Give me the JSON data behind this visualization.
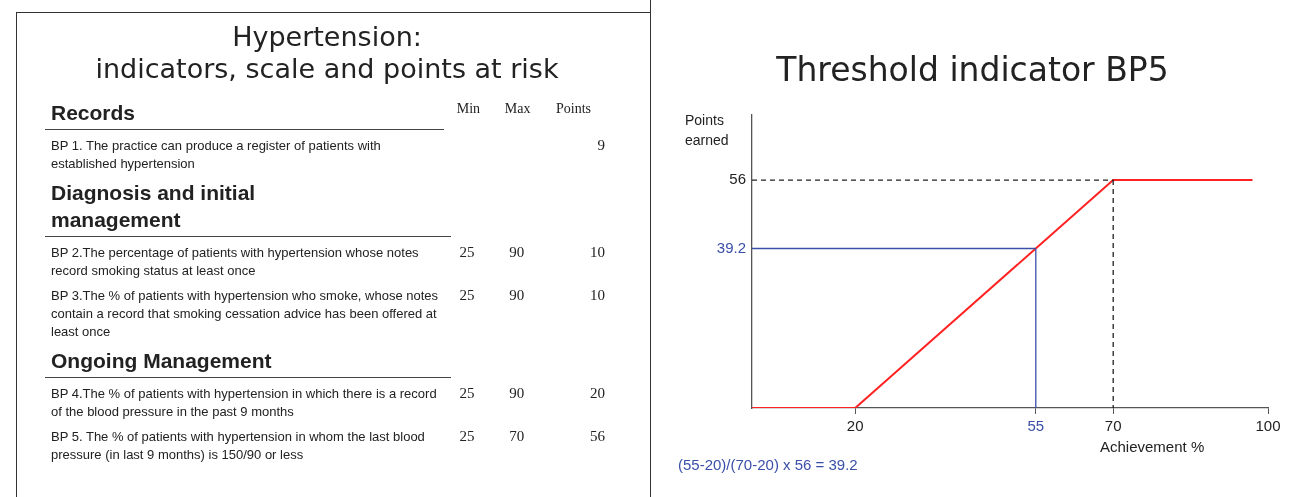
{
  "chart_data": [
    {
      "type": "other",
      "title": "Hypertension:\nindicators, scale and points at risk",
      "categories": [
        "Min",
        "Max",
        "Points"
      ],
      "y_categories": [
        "Records",
        "BP 1. The practice can produce a register of patients with established hypertension",
        "Diagnosis and initial management",
        "BP 2.The percentage of patients with hypertension whose notes record smoking status at least once",
        "BP 3.The % of patients with hypertension who smoke, whose notes contain a record that smoking cessation advice has been offered at least once",
        "Ongoing Management",
        "BP 4.The % of patients with hypertension in which there is a record of the blood pressure in the past 9 months",
        "BP 5. The % of patients with hypertension in whom the last blood pressure (in last 9 months) is 150/90 or less"
      ],
      "cell_labels": [
        [
          null,
          null,
          null
        ],
        [
          null,
          null,
          "9"
        ],
        [
          null,
          null,
          null
        ],
        [
          "25",
          "90",
          "10"
        ],
        [
          "25",
          "90",
          "10"
        ],
        [
          null,
          null,
          null
        ],
        [
          "25",
          "90",
          "20"
        ],
        [
          "25",
          "70",
          "56"
        ]
      ]
    },
    {
      "type": "line",
      "title": "Threshold indicator BP5",
      "xlabel": "Achievement %",
      "ylabel": "Points earned",
      "x": [
        0,
        20,
        70,
        97
      ],
      "series": [
        {
          "color": "#ff2222",
          "values": [
            0,
            0,
            56,
            56
          ]
        }
      ],
      "xlim": [
        0,
        100
      ],
      "ylim": [
        0,
        72
      ],
      "xticks": [
        20,
        55,
        70,
        100
      ],
      "yticks": [
        39.2,
        56
      ],
      "ref_lines": [
        {
          "axis": "y",
          "value": 56,
          "color": "#222222",
          "line_style": "dashed"
        },
        {
          "axis": "x",
          "value": 70,
          "color": "#222222",
          "line_style": "dashed"
        },
        {
          "axis": "y",
          "value": 39.2,
          "color": "#3a4fa8",
          "line_style": "solid"
        },
        {
          "axis": "x",
          "value": 55,
          "color": "#3a4fa8",
          "line_style": "solid"
        }
      ],
      "annotations": [
        "(55-20)/(70-20) x 56 = 39.2"
      ],
      "legend": false,
      "grid": false,
      "marker": "none",
      "line_style": "solid"
    }
  ]
}
